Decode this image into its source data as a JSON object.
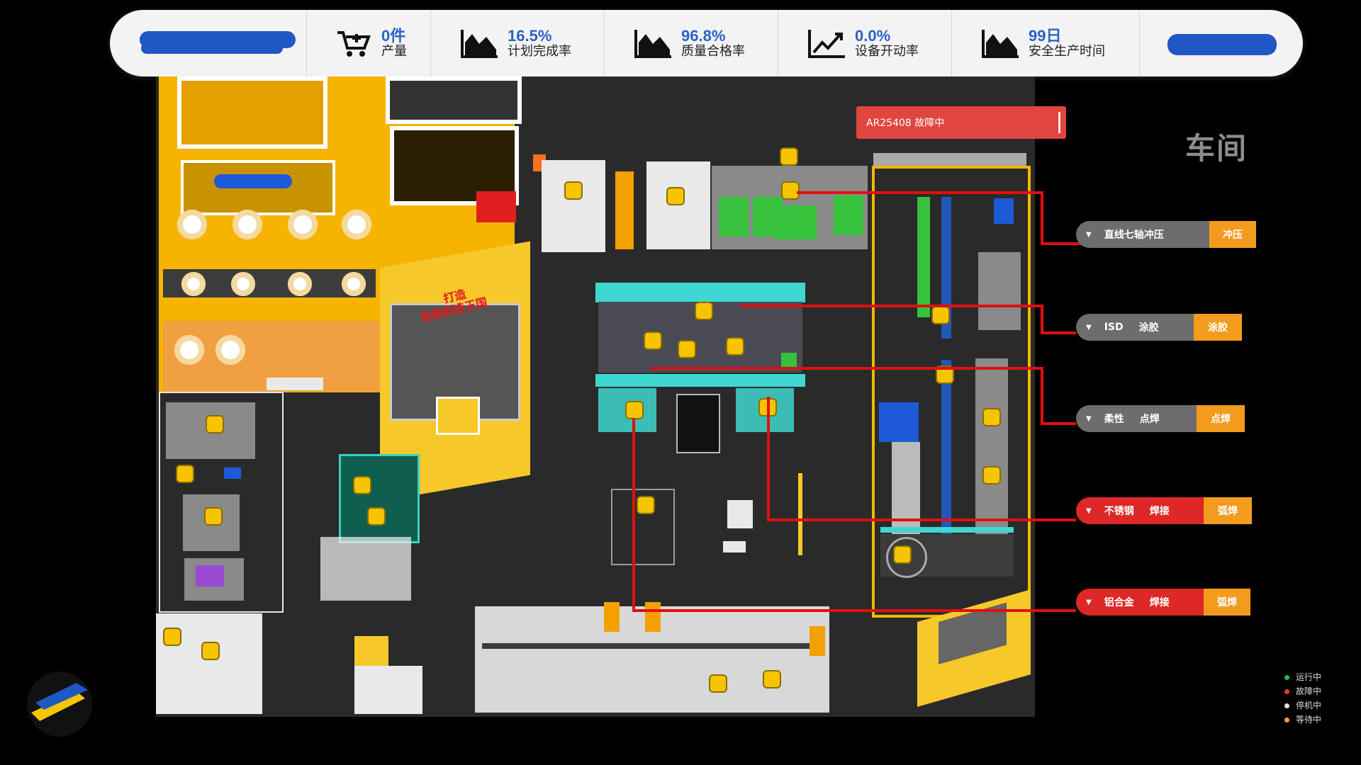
{
  "kpis": [
    {
      "icon": "cart-plus-icon",
      "value": "0件",
      "label": "产量"
    },
    {
      "icon": "area-chart-icon",
      "value": "16.5%",
      "label": "计划完成率"
    },
    {
      "icon": "area-chart-icon",
      "value": "96.8%",
      "label": "质量合格率"
    },
    {
      "icon": "line-chart-icon",
      "value": "0.0%",
      "label": "设备开动率"
    },
    {
      "icon": "area-chart-icon",
      "value": "99日",
      "label": "安全生产时间"
    }
  ],
  "alarm": {
    "text": "AR25408 故障中",
    "color": "#e0453f"
  },
  "area_title": "车间",
  "map_slogan": {
    "line1": "打造",
    "line2": "智能制造王国"
  },
  "stations": [
    {
      "name": "直线七轴冲压",
      "name2": "",
      "kind": "冲压",
      "status": "stopped"
    },
    {
      "name": "ISD",
      "name2": "涂胶",
      "kind": "涂胶",
      "status": "stopped"
    },
    {
      "name": "柔性",
      "name2": "点焊",
      "kind": "点焊",
      "status": "stopped"
    },
    {
      "name": "不锈钢",
      "name2": "焊接",
      "kind": "弧焊",
      "status": "fault"
    },
    {
      "name": "铝合金",
      "name2": "焊接",
      "kind": "弧焊",
      "status": "fault"
    }
  ],
  "legend": [
    {
      "label": "运行中",
      "color": "#1fb85a"
    },
    {
      "label": "故障中",
      "color": "#e23a3a"
    },
    {
      "label": "停机中",
      "color": "#e6e6e6"
    },
    {
      "label": "等待中",
      "color": "#f3a625"
    }
  ],
  "colors": {
    "accent": "#2a62c8",
    "fault": "#de2727",
    "stopped": "#6d6d6d",
    "kind": "#f39b1c",
    "connector": "#e01010"
  }
}
